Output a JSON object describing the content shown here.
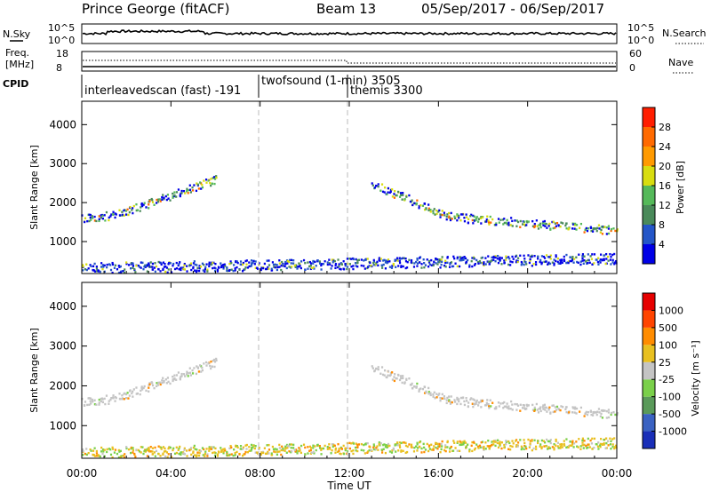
{
  "header": {
    "station": "Prince George (fitACF)",
    "beam": "Beam 13",
    "daterange": "05/Sep/2017 - 06/Sep/2017"
  },
  "strips": {
    "nsky_label": "N.Sky",
    "nsky_ticks": [
      "10^5",
      "10^0"
    ],
    "nsearch_label": "N.Search",
    "nsearch_ticks": [
      "10^5",
      "10^0"
    ],
    "freq_label_1": "Freq.",
    "freq_label_2": "[MHz]",
    "freq_ticks": [
      "18",
      "8"
    ],
    "nave_label": "Nave",
    "nave_ticks": [
      "60",
      "0"
    ],
    "cpid_label": "CPID"
  },
  "cpid_segments": [
    {
      "name": "interleavedscan (fast) -191",
      "start_hour": 0
    },
    {
      "name": "twofsound (1-min) 3505",
      "start_hour": 8
    },
    {
      "name": "themis 3300",
      "start_hour": 12
    }
  ],
  "x_axis": {
    "label": "Time UT",
    "ticks": [
      "00:00",
      "04:00",
      "08:00",
      "12:00",
      "16:00",
      "20:00",
      "00:00"
    ]
  },
  "chart_data": [
    {
      "type": "heatmap",
      "name": "Power",
      "xlabel": "Time UT",
      "ylabel": "Slant Range [km]",
      "xlim_hours": [
        0,
        24
      ],
      "ylim_km": [
        180,
        4600
      ],
      "y_ticks": [
        1000,
        2000,
        3000,
        4000
      ],
      "colorbar": {
        "label": "Power [dB]",
        "tick_labels": [
          "4",
          "8",
          "12",
          "16",
          "20",
          "24",
          "28"
        ],
        "colors": [
          "#0000e6",
          "#2456c8",
          "#4a8a5a",
          "#55b95a",
          "#d8dd10",
          "#ff9a00",
          "#ff6a00",
          "#ff1e00"
        ]
      },
      "echo_bands": [
        {
          "from_hour": 0.0,
          "to_hour": 1.5,
          "from_km": 1600,
          "to_km": 1700
        },
        {
          "from_hour": 1.5,
          "to_hour": 6.0,
          "from_km": 1700,
          "to_km": 2600
        },
        {
          "from_hour": 13.0,
          "to_hour": 16.5,
          "from_km": 2500,
          "to_km": 1650
        },
        {
          "from_hour": 16.5,
          "to_hour": 24.0,
          "from_km": 1650,
          "to_km": 1300
        },
        {
          "from_hour": 0.0,
          "to_hour": 24.0,
          "from_km": 250,
          "to_km": 500
        }
      ]
    },
    {
      "type": "heatmap",
      "name": "Velocity",
      "xlabel": "Time UT",
      "ylabel": "Slant Range [km]",
      "xlim_hours": [
        0,
        24
      ],
      "ylim_km": [
        180,
        4600
      ],
      "y_ticks": [
        1000,
        2000,
        3000,
        4000
      ],
      "colorbar": {
        "label": "Velocity [m s⁻¹]",
        "tick_labels": [
          "1000",
          "500",
          "100",
          "25",
          "-25",
          "-100",
          "-500",
          "-1000"
        ],
        "colors": [
          "#1a2fb8",
          "#3a62c2",
          "#5a9a5a",
          "#7ad04a",
          "#c4c4c4",
          "#e8c020",
          "#ff8c00",
          "#ff4400",
          "#e60000"
        ]
      },
      "echo_bands": [
        {
          "from_hour": 0.0,
          "to_hour": 1.5,
          "from_km": 1600,
          "to_km": 1700
        },
        {
          "from_hour": 1.5,
          "to_hour": 6.0,
          "from_km": 1700,
          "to_km": 2600
        },
        {
          "from_hour": 13.0,
          "to_hour": 16.5,
          "from_km": 2500,
          "to_km": 1650
        },
        {
          "from_hour": 16.5,
          "to_hour": 24.0,
          "from_km": 1650,
          "to_km": 1300
        },
        {
          "from_hour": 0.0,
          "to_hour": 24.0,
          "from_km": 250,
          "to_km": 500
        }
      ]
    }
  ]
}
